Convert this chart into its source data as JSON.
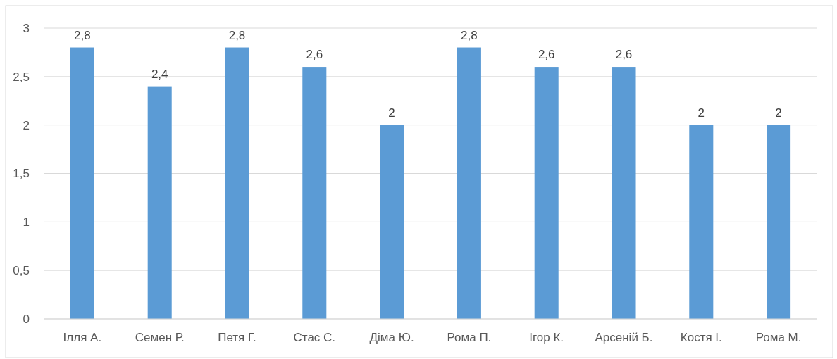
{
  "chart_data": {
    "type": "bar",
    "categories": [
      "Ілля А.",
      "Семен Р.",
      "Петя Г.",
      "Стас С.",
      "Діма Ю.",
      "Рома П.",
      "Ігор К.",
      "Арсеній Б.",
      "Костя І.",
      "Рома М."
    ],
    "values": [
      2.8,
      2.4,
      2.8,
      2.6,
      2,
      2.8,
      2.6,
      2.6,
      2,
      2
    ],
    "value_labels": [
      "2,8",
      "2,4",
      "2,8",
      "2,6",
      "2",
      "2,8",
      "2,6",
      "2,6",
      "2",
      "2"
    ],
    "color": "#5b9bd5",
    "ylim": [
      0,
      3
    ],
    "yticks": [
      0,
      {
        "value": 0.5,
        "label": "0,5"
      },
      1,
      {
        "value": 1.5,
        "label": "1,5"
      },
      2,
      {
        "value": 2.5,
        "label": "2,5"
      },
      3
    ],
    "grid": "y"
  }
}
